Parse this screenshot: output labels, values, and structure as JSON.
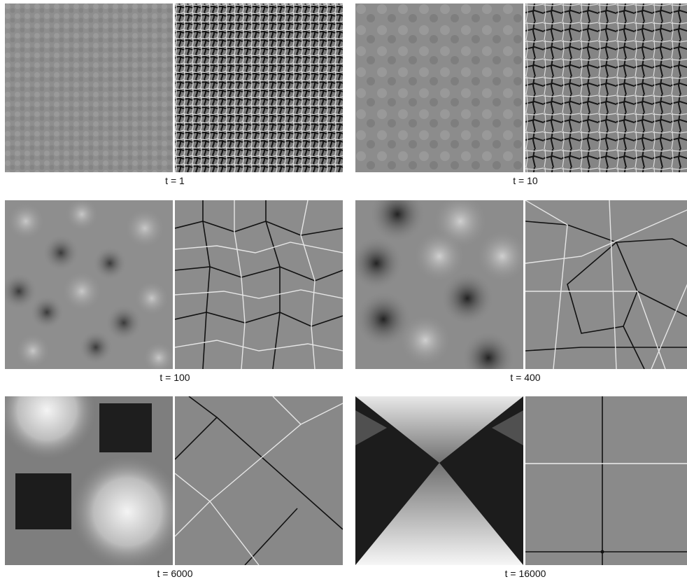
{
  "figure": {
    "panels": [
      {
        "caption": "t = 1"
      },
      {
        "caption": "t = 10"
      },
      {
        "caption": "t = 100"
      },
      {
        "caption": "t = 400"
      },
      {
        "caption": "t = 6000"
      },
      {
        "caption": "t = 16000"
      }
    ]
  }
}
